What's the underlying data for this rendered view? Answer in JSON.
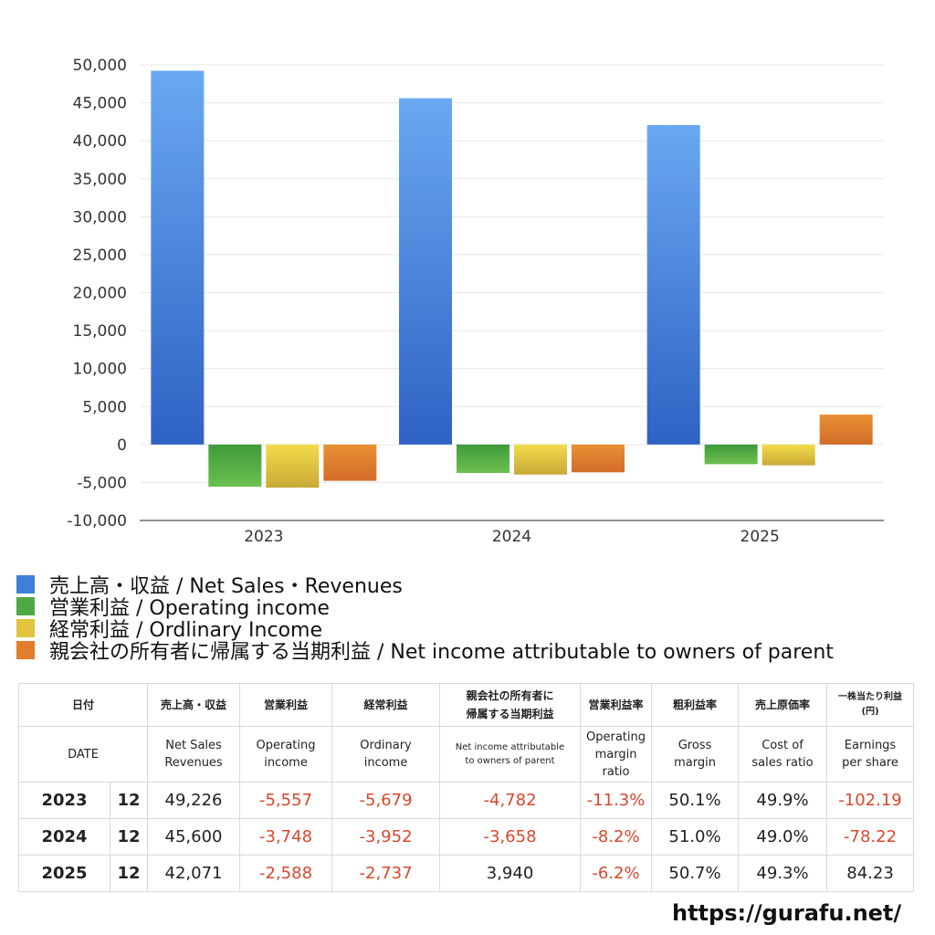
{
  "chart_data": {
    "type": "bar",
    "categories": [
      "2023",
      "2024",
      "2025"
    ],
    "series": [
      {
        "name": "売上高・収益 / Net Sales・Revenues",
        "values": [
          49226,
          45600,
          42071
        ],
        "color_top": "#6aa8f2",
        "color_bottom": "#2e62c4"
      },
      {
        "name": "営業利益 / Operating income",
        "values": [
          -5557,
          -3748,
          -2588
        ],
        "color_top": "#3f9a3a",
        "color_bottom": "#6cc04f"
      },
      {
        "name": "経常利益 / Ordlinary Income",
        "values": [
          -5679,
          -3952,
          -2737
        ],
        "color_top": "#f2dc4a",
        "color_bottom": "#c9a937"
      },
      {
        "name": "親会社の所有者に帰属する当期利益 / Net income attributable to owners of parent",
        "values": [
          -4782,
          -3658,
          3940
        ],
        "color_top": "#e99033",
        "color_bottom": "#d36c2a"
      }
    ],
    "ylim": [
      -10000,
      50000
    ],
    "yticks": [
      50000,
      45000,
      40000,
      35000,
      30000,
      25000,
      20000,
      15000,
      10000,
      5000,
      0,
      -5000,
      -10000
    ],
    "ytick_labels": [
      "50,000",
      "45,000",
      "40,000",
      "35,000",
      "30,000",
      "25,000",
      "20,000",
      "15,000",
      "10,000",
      "5,000",
      "0",
      "-5,000",
      "-10,000"
    ],
    "legend_position": "bottom-left",
    "grid": true
  },
  "legend": {
    "colors": [
      "#3f7fd9",
      "#4fa845",
      "#e0c33f",
      "#e07e2e"
    ]
  },
  "table": {
    "headers_jp": [
      "日付",
      "売上高・収益",
      "営業利益",
      "経常利益",
      "親会社の所有者に",
      "帰属する当期利益",
      "営業利益率",
      "粗利益率",
      "売上原価率",
      "一株当たり利益",
      "(円)"
    ],
    "headers_en": {
      "date": "DATE",
      "sales": [
        "Net Sales",
        "Revenues"
      ],
      "op": [
        "Operating",
        "income"
      ],
      "ord": [
        "Ordinary",
        "income"
      ],
      "net": [
        "Net income attributable",
        "to owners of parent"
      ],
      "opm": [
        "Operating",
        "margin",
        "ratio"
      ],
      "gm": [
        "Gross",
        "margin"
      ],
      "cos": [
        "Cost of",
        "sales ratio"
      ],
      "eps": [
        "Earnings",
        "per share"
      ]
    },
    "rows": [
      {
        "year": "2023",
        "month": "12",
        "sales": "49,226",
        "op": "-5,557",
        "ord": "-5,679",
        "net": "-4,782",
        "opm": "-11.3%",
        "gm": "50.1%",
        "cos": "49.9%",
        "eps": "-102.19"
      },
      {
        "year": "2024",
        "month": "12",
        "sales": "45,600",
        "op": "-3,748",
        "ord": "-3,952",
        "net": "-3,658",
        "opm": "-8.2%",
        "gm": "51.0%",
        "cos": "49.0%",
        "eps": "-78.22"
      },
      {
        "year": "2025",
        "month": "12",
        "sales": "42,071",
        "op": "-2,588",
        "ord": "-2,737",
        "net": "3,940",
        "opm": "-6.2%",
        "gm": "50.7%",
        "cos": "49.3%",
        "eps": "84.23"
      }
    ]
  },
  "site_url": "https://gurafu.net/"
}
